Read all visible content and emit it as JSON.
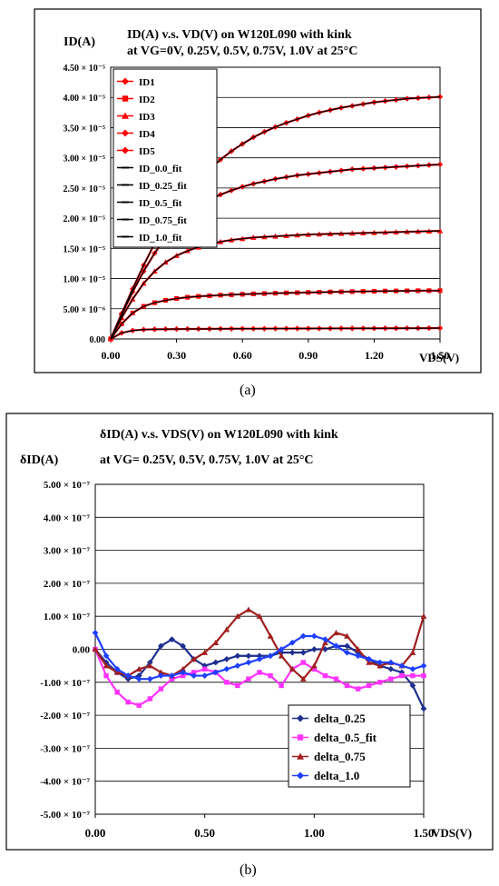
{
  "captions": {
    "a": "(a)",
    "b": "(b)"
  },
  "chart_data": [
    {
      "type": "line",
      "title_line1": "ID(A) v.s. VD(V) on W120L090 with kink",
      "title_line2": "at VG=0V, 0.25V, 0.5V, 0.75V, 1.0V at 25°C",
      "ylabel": "ID(A)",
      "xlabel": "VDS(V)",
      "xlim": [
        0,
        1.5
      ],
      "ylim": [
        0,
        4.5e-05
      ],
      "x_ticks": [
        "0.00",
        "0.30",
        "0.60",
        "0.90",
        "1.20",
        "1.50"
      ],
      "y_ticks": [
        "0.00",
        "5.00 × 10⁻⁶",
        "1.00 × 10⁻⁵",
        "1.50 × 10⁻⁵",
        "2.00 × 10⁻⁵",
        "2.50 × 10⁻⁵",
        "3.00 × 10⁻⁵",
        "3.50 × 10⁻⁵",
        "4.00 × 10⁻⁵",
        "4.50 × 10⁻⁵"
      ],
      "grid": "horizontal",
      "legend_position": "top-left",
      "x": [
        0,
        0.05,
        0.1,
        0.15,
        0.2,
        0.25,
        0.3,
        0.35,
        0.4,
        0.45,
        0.5,
        0.55,
        0.6,
        0.65,
        0.7,
        0.75,
        0.8,
        0.85,
        0.9,
        0.95,
        1.0,
        1.05,
        1.1,
        1.15,
        1.2,
        1.25,
        1.3,
        1.35,
        1.4,
        1.45,
        1.5
      ],
      "series": [
        {
          "name": "ID1",
          "color": "#ff0000",
          "marker": "diamond",
          "values": [
            0,
            1e-06,
            1.4e-06,
            1.55e-06,
            1.6e-06,
            1.62e-06,
            1.64e-06,
            1.65e-06,
            1.66e-06,
            1.67e-06,
            1.68e-06,
            1.69e-06,
            1.7e-06,
            1.7e-06,
            1.71e-06,
            1.72e-06,
            1.72e-06,
            1.73e-06,
            1.73e-06,
            1.74e-06,
            1.74e-06,
            1.75e-06,
            1.75e-06,
            1.76e-06,
            1.76e-06,
            1.77e-06,
            1.77e-06,
            1.78e-06,
            1.78e-06,
            1.79e-06,
            1.8e-06
          ]
        },
        {
          "name": "ID2",
          "color": "#ff0000",
          "marker": "square",
          "values": [
            0,
            2.5e-06,
            4.3e-06,
            5.4e-06,
            6e-06,
            6.4e-06,
            6.7e-06,
            6.9e-06,
            7.05e-06,
            7.15e-06,
            7.25e-06,
            7.33e-06,
            7.4e-06,
            7.46e-06,
            7.52e-06,
            7.57e-06,
            7.62e-06,
            7.66e-06,
            7.7e-06,
            7.74e-06,
            7.78e-06,
            7.81e-06,
            7.84e-06,
            7.87e-06,
            7.9e-06,
            7.93e-06,
            7.95e-06,
            7.97e-06,
            7.99e-06,
            8e-06,
            8e-06
          ]
        },
        {
          "name": "ID3",
          "color": "#ff0000",
          "marker": "triangle",
          "values": [
            0,
            3.5e-06,
            6.6e-06,
            9.2e-06,
            1.12e-05,
            1.27e-05,
            1.38e-05,
            1.46e-05,
            1.52e-05,
            1.57e-05,
            1.61e-05,
            1.64e-05,
            1.66e-05,
            1.68e-05,
            1.69e-05,
            1.7e-05,
            1.71e-05,
            1.72e-05,
            1.73e-05,
            1.735e-05,
            1.74e-05,
            1.745e-05,
            1.75e-05,
            1.755e-05,
            1.76e-05,
            1.765e-05,
            1.77e-05,
            1.775e-05,
            1.78e-05,
            1.785e-05,
            1.79e-05
          ]
        },
        {
          "name": "ID4",
          "color": "#ff0000",
          "marker": "diamond",
          "values": [
            0,
            4e-06,
            7.8e-06,
            1.12e-05,
            1.42e-05,
            1.67e-05,
            1.88e-05,
            2.05e-05,
            2.19e-05,
            2.3e-05,
            2.39e-05,
            2.46e-05,
            2.52e-05,
            2.57e-05,
            2.61e-05,
            2.65e-05,
            2.68e-05,
            2.71e-05,
            2.73e-05,
            2.75e-05,
            2.77e-05,
            2.79e-05,
            2.81e-05,
            2.82e-05,
            2.83e-05,
            2.84e-05,
            2.85e-05,
            2.86e-05,
            2.87e-05,
            2.88e-05,
            2.89e-05
          ]
        },
        {
          "name": "ID5",
          "color": "#ff0000",
          "marker": "diamond",
          "values": [
            0,
            4.2e-06,
            8.3e-06,
            1.22e-05,
            1.58e-05,
            1.9e-05,
            2.18e-05,
            2.42e-05,
            2.63e-05,
            2.81e-05,
            2.97e-05,
            3.11e-05,
            3.23e-05,
            3.34e-05,
            3.43e-05,
            3.51e-05,
            3.58e-05,
            3.64e-05,
            3.7e-05,
            3.75e-05,
            3.79e-05,
            3.83e-05,
            3.86e-05,
            3.89e-05,
            3.92e-05,
            3.94e-05,
            3.96e-05,
            3.98e-05,
            3.99e-05,
            4e-05,
            4.01e-05
          ]
        },
        {
          "name": "ID_0.0_fit",
          "color": "#000000",
          "marker": "line"
        },
        {
          "name": "ID_0.25_fit",
          "color": "#000000",
          "marker": "line"
        },
        {
          "name": "ID_0.5_fit",
          "color": "#000000",
          "marker": "line"
        },
        {
          "name": "ID_0.75_fit",
          "color": "#000000",
          "marker": "line"
        },
        {
          "name": "ID_1.0_fit",
          "color": "#000000",
          "marker": "line"
        }
      ]
    },
    {
      "type": "line",
      "title_line1": "δID(A) v.s. VDS(V) on W120L090 with kink",
      "title_line2": "at VG= 0.25V, 0.5V, 0.75V, 1.0V at 25°C",
      "ylabel": "δID(A)",
      "xlabel": "VDS(V)",
      "xlim": [
        0,
        1.5
      ],
      "ylim": [
        -5e-07,
        5e-07
      ],
      "x_ticks": [
        "0.00",
        "0.50",
        "1.00",
        "1.50"
      ],
      "y_ticks": [
        "-5.00 × 10⁻⁷",
        "-4.00 × 10⁻⁷",
        "-3.00 × 10⁻⁷",
        "-2.00 × 10⁻⁷",
        "-1.00 × 10⁻⁷",
        "0.00",
        "1.00 × 10⁻⁷",
        "2.00 × 10⁻⁷",
        "3.00 × 10⁻⁷",
        "4.00 × 10⁻⁷",
        "5.00 × 10⁻⁷"
      ],
      "grid": "horizontal",
      "legend_position": "bottom-right",
      "x": [
        0,
        0.05,
        0.1,
        0.15,
        0.2,
        0.25,
        0.3,
        0.35,
        0.4,
        0.45,
        0.5,
        0.55,
        0.6,
        0.65,
        0.7,
        0.75,
        0.8,
        0.85,
        0.9,
        0.95,
        1.0,
        1.05,
        1.1,
        1.15,
        1.2,
        1.25,
        1.3,
        1.35,
        1.4,
        1.45,
        1.5
      ],
      "series": [
        {
          "name": "delta_0.25",
          "color": "#1f2f8f",
          "marker": "diamond",
          "values": [
            0,
            -4e-08,
            -7e-08,
            -9e-08,
            -8e-08,
            -4e-08,
            1e-08,
            3e-08,
            1e-08,
            -3e-08,
            -5e-08,
            -4e-08,
            -3e-08,
            -2e-08,
            -2e-08,
            -2e-08,
            -2e-08,
            -1e-08,
            -1e-08,
            -1e-08,
            0,
            0,
            1e-08,
            1e-08,
            -1e-08,
            -3e-08,
            -5e-08,
            -6e-08,
            -7e-08,
            -1.1e-07,
            -1.8e-07
          ]
        },
        {
          "name": "delta_0.5_fit",
          "color": "#ff33ff",
          "marker": "square",
          "values": [
            0,
            -8e-08,
            -1.3e-07,
            -1.6e-07,
            -1.7e-07,
            -1.5e-07,
            -1.2e-07,
            -9e-08,
            -8e-08,
            -7e-08,
            -6e-08,
            -7e-08,
            -1e-07,
            -1.1e-07,
            -9e-08,
            -7e-08,
            -8e-08,
            -1.1e-07,
            -6e-08,
            -4e-08,
            -6e-08,
            -8e-08,
            -9e-08,
            -1.1e-07,
            -1.2e-07,
            -1.1e-07,
            -1e-07,
            -9e-08,
            -8e-08,
            -8e-08,
            -8e-08
          ]
        },
        {
          "name": "delta_0.75",
          "color": "#a01f1f",
          "marker": "triangle",
          "values": [
            0,
            -5e-08,
            -7e-08,
            -8e-08,
            -6e-08,
            -5e-08,
            -7e-08,
            -8e-08,
            -6e-08,
            -3e-08,
            -1e-08,
            2e-08,
            6e-08,
            1e-07,
            1.2e-07,
            1e-07,
            4e-08,
            -2e-08,
            -6e-08,
            -9e-08,
            -5e-08,
            2e-08,
            5e-08,
            4e-08,
            0,
            -4e-08,
            -5e-08,
            -4e-08,
            -5e-08,
            -1e-08,
            1e-07
          ]
        },
        {
          "name": "delta_1.0",
          "color": "#1f3fff",
          "marker": "diamond",
          "values": [
            5e-08,
            -2e-08,
            -6e-08,
            -8e-08,
            -9e-08,
            -9e-08,
            -8e-08,
            -8e-08,
            -7e-08,
            -8e-08,
            -8e-08,
            -7e-08,
            -6e-08,
            -5e-08,
            -4e-08,
            -3e-08,
            -2e-08,
            0,
            2e-08,
            4e-08,
            4e-08,
            3e-08,
            1e-08,
            -1e-08,
            -2e-08,
            -3e-08,
            -4e-08,
            -4e-08,
            -5e-08,
            -6e-08,
            -5e-08
          ]
        }
      ]
    }
  ]
}
